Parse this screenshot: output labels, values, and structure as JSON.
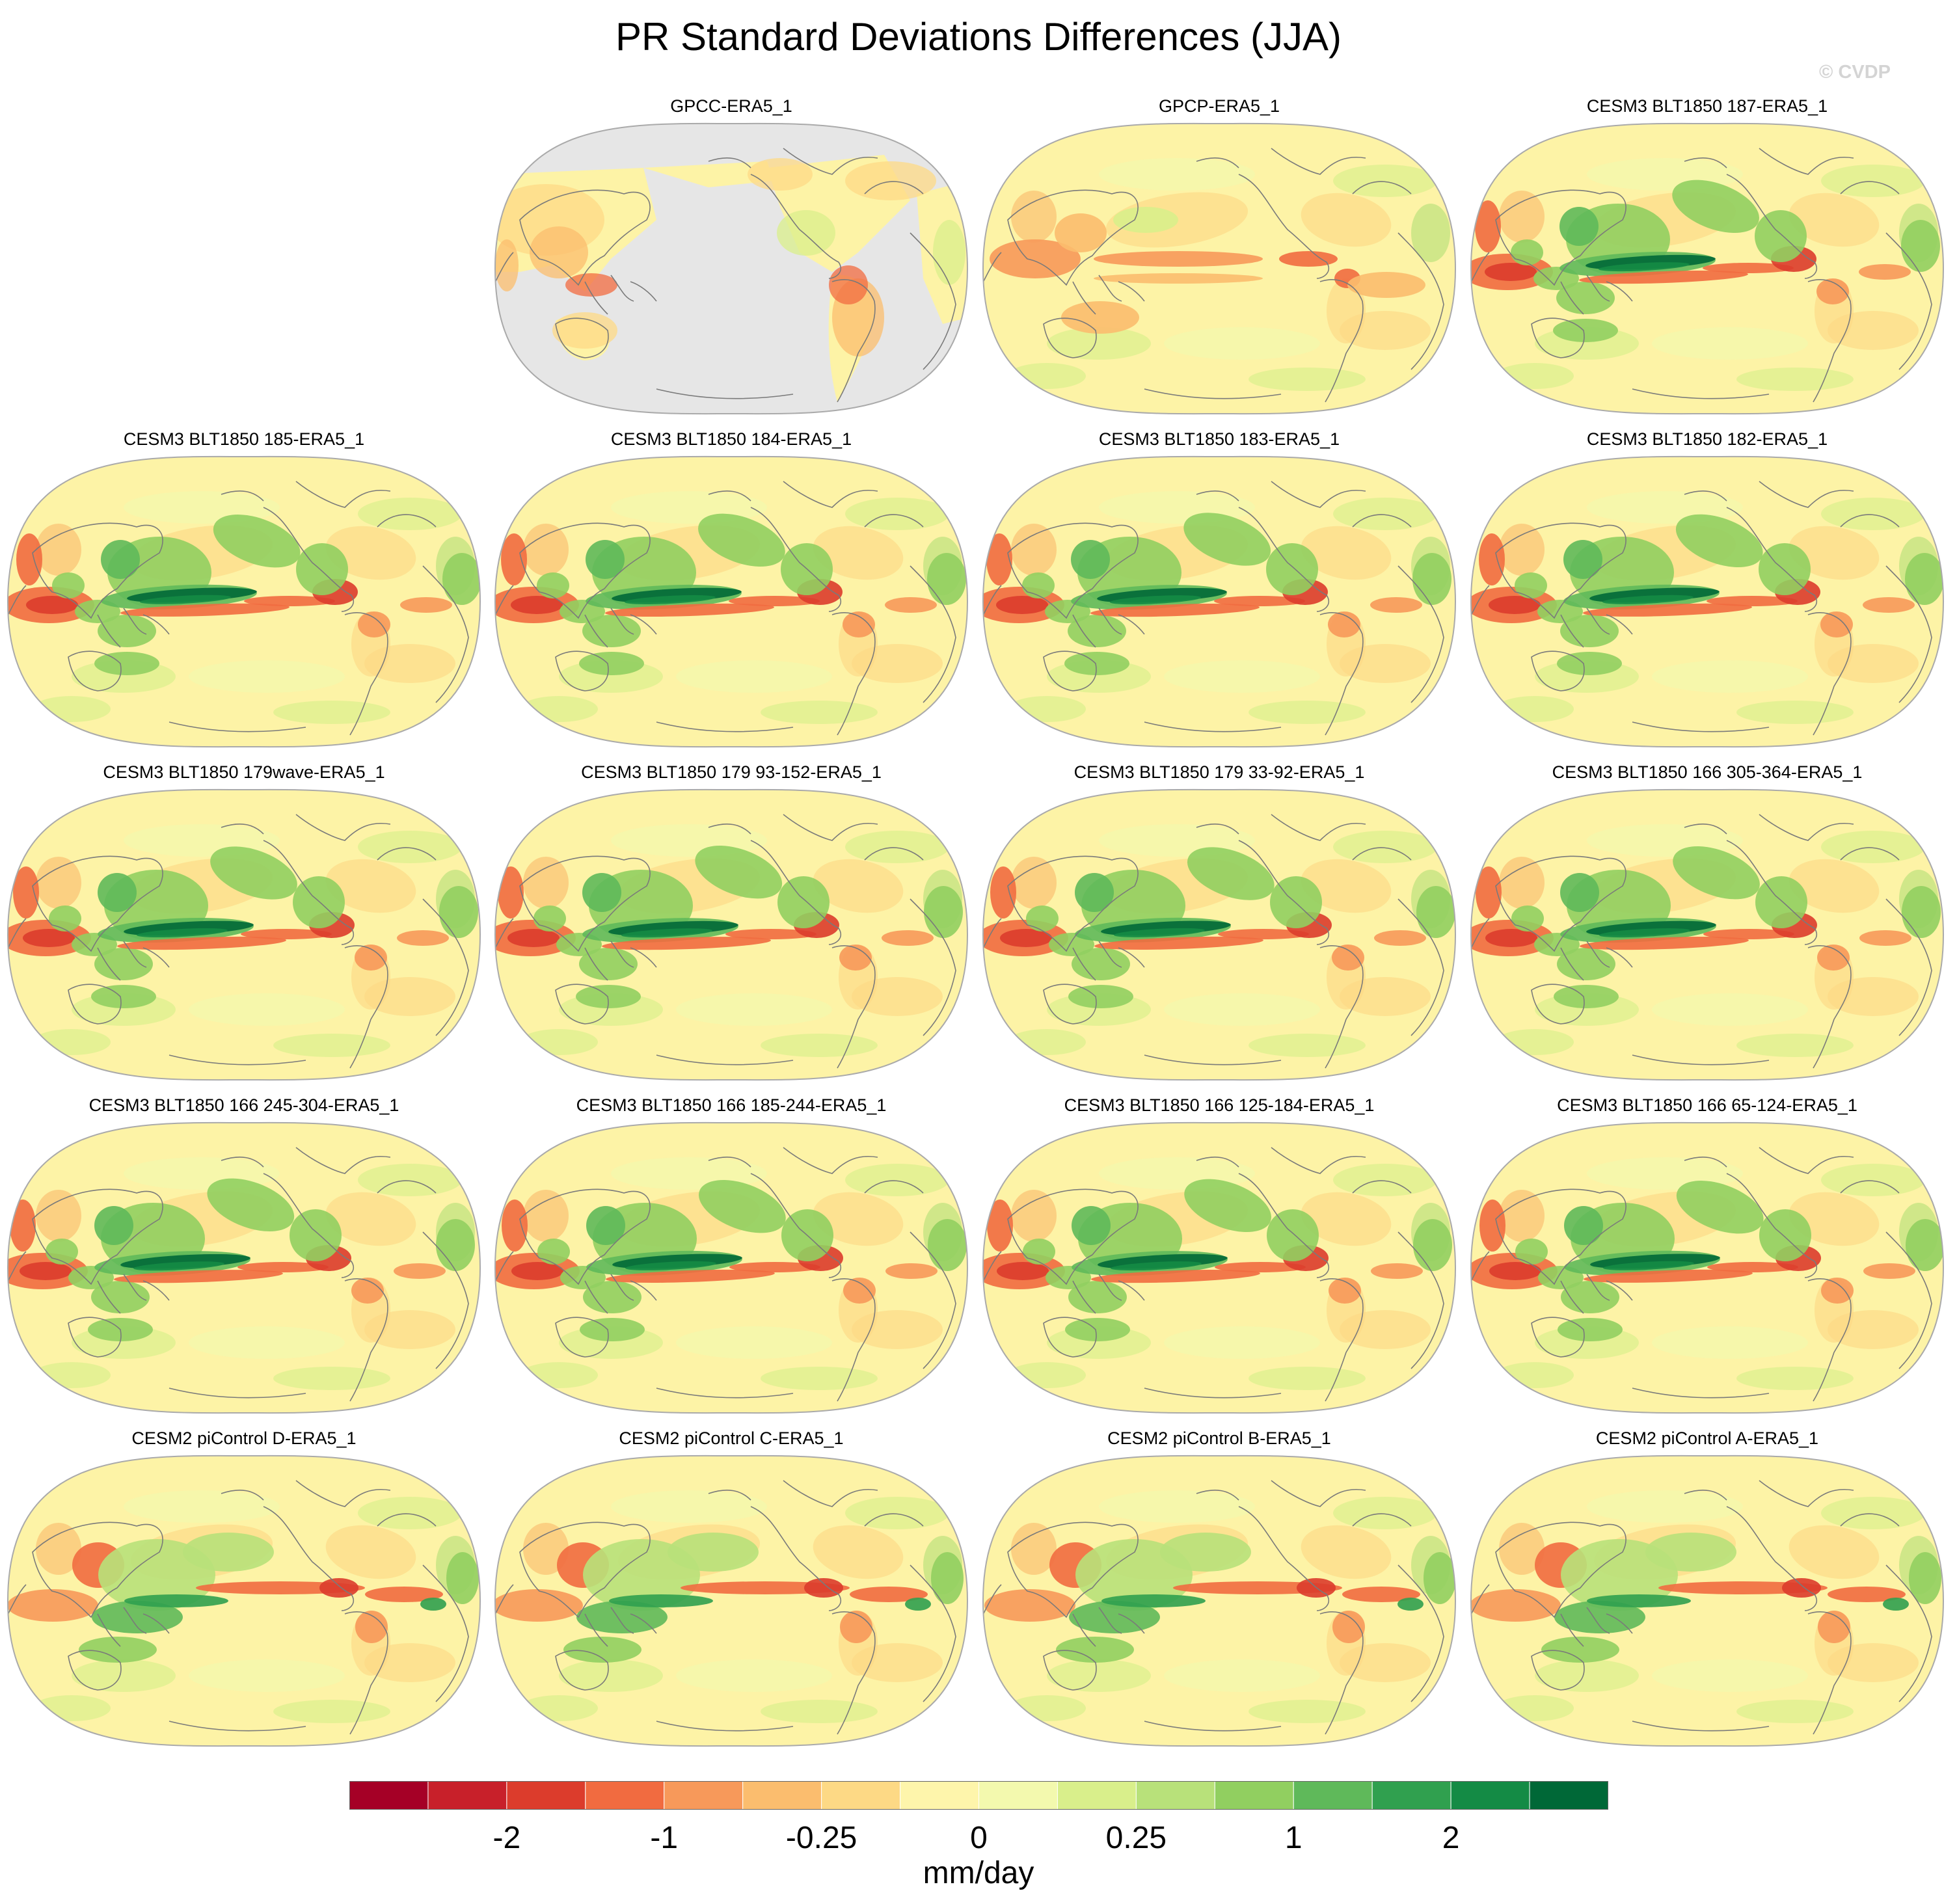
{
  "title": "PR Standard Deviations Differences (JJA)",
  "copyright": "© CVDP",
  "panels": [
    {
      "label": "GPCC-ERA5_1",
      "style": "land"
    },
    {
      "label": "GPCP-ERA5_1",
      "style": "obs"
    },
    {
      "label": "CESM3 BLT1850 187-ERA5_1",
      "style": "model"
    },
    {
      "label": "CESM3 BLT1850 185-ERA5_1",
      "style": "model"
    },
    {
      "label": "CESM3 BLT1850 184-ERA5_1",
      "style": "model"
    },
    {
      "label": "CESM3 BLT1850 183-ERA5_1",
      "style": "model"
    },
    {
      "label": "CESM3 BLT1850 182-ERA5_1",
      "style": "model"
    },
    {
      "label": "CESM3 BLT1850 179wave-ERA5_1",
      "style": "model"
    },
    {
      "label": "CESM3 BLT1850 179 93-152-ERA5_1",
      "style": "model"
    },
    {
      "label": "CESM3 BLT1850 179 33-92-ERA5_1",
      "style": "model"
    },
    {
      "label": "CESM3 BLT1850 166 305-364-ERA5_1",
      "style": "model"
    },
    {
      "label": "CESM3 BLT1850 166 245-304-ERA5_1",
      "style": "model"
    },
    {
      "label": "CESM3 BLT1850 166 185-244-ERA5_1",
      "style": "model"
    },
    {
      "label": "CESM3 BLT1850 166 125-184-ERA5_1",
      "style": "model"
    },
    {
      "label": "CESM3 BLT1850 166 65-124-ERA5_1",
      "style": "model"
    },
    {
      "label": "CESM2 piControl D-ERA5_1",
      "style": "cesm2"
    },
    {
      "label": "CESM2 piControl C-ERA5_1",
      "style": "cesm2"
    },
    {
      "label": "CESM2 piControl B-ERA5_1",
      "style": "cesm2"
    },
    {
      "label": "CESM2 piControl A-ERA5_1",
      "style": "cesm2"
    }
  ],
  "colorbar": {
    "colors": [
      "#a50026",
      "#c8202a",
      "#dc3c2c",
      "#f16b40",
      "#f7995a",
      "#fbbd6e",
      "#fdd985",
      "#fef5ab",
      "#f3f9ae",
      "#d9ef8b",
      "#b8e17a",
      "#91cf60",
      "#5fb95a",
      "#30a04f",
      "#148b45",
      "#006837"
    ],
    "tick_labels": [
      "-2",
      "-1",
      "-0.25",
      "0",
      "0.25",
      "1",
      "2"
    ],
    "units": "mm/day"
  },
  "colors": {
    "ocean_missing": "#e6e6e6",
    "coastline": "#7a7a7a",
    "outline": "#aaaaaa",
    "base": "#fdf3a6"
  }
}
